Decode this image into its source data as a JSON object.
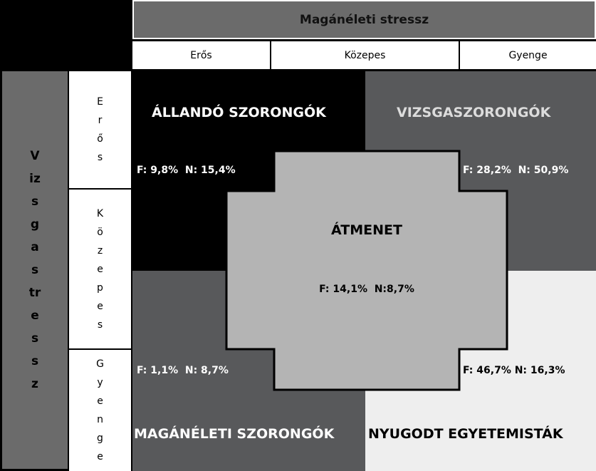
{
  "header": {
    "title": "Magánéleti stressz"
  },
  "columns": [
    "Erős",
    "Közepes",
    "Gyenge"
  ],
  "side_title": "Vizsgastressz",
  "rows": [
    "Erős",
    "Közepes",
    "Gyenge"
  ],
  "quadrants": [
    {
      "label": "ÁLLANDÓ SZORONGÓK",
      "stat": "F: 9,8%  N: 15,4%"
    },
    {
      "label": "VIZSGASZORONGÓK",
      "stat": "F: 28,2%  N: 50,9%"
    },
    {
      "label": "MAGÁNÉLETI SZORONGÓK",
      "stat": "F: 1,1%  N: 8,7%"
    },
    {
      "label": "NYUGODT EGYETEMISTÁK",
      "stat": "F: 46,7% N: 16,3%"
    }
  ],
  "center": {
    "label": "ÁTMENET",
    "stat": "F: 14,1%  N:8,7%"
  }
}
